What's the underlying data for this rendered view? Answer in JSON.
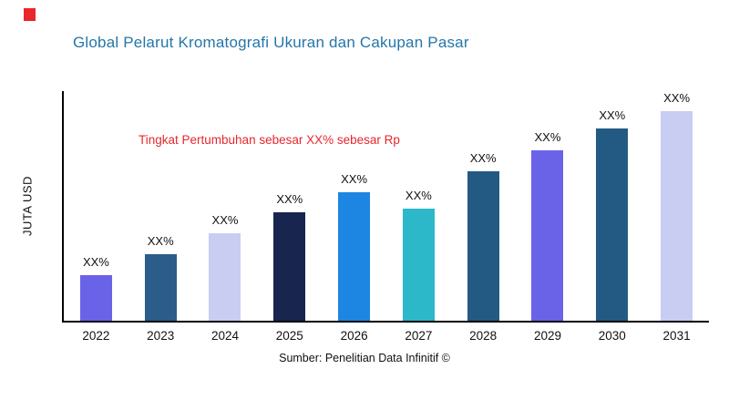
{
  "brand": {
    "logo_color": "#e8262c"
  },
  "title": "Global Pelarut Kromatografi Ukuran dan Cakupan Pasar",
  "title_color": "#2576a8",
  "annotation": {
    "text": "Tingkat Pertumbuhan sebesar XX% sebesar Rp",
    "color": "#e8262c"
  },
  "source": "Sumber: Penelitian Data Infinitif ©",
  "chart_data": {
    "type": "bar",
    "title": "Global Pelarut Kromatografi Ukuran dan Cakupan Pasar",
    "xlabel": "",
    "ylabel": "JUTA USD",
    "categories": [
      "2022",
      "2023",
      "2024",
      "2025",
      "2026",
      "2027",
      "2028",
      "2029",
      "2030",
      "2031"
    ],
    "values": [
      50,
      72,
      95,
      118,
      140,
      122,
      163,
      186,
      209,
      232
    ],
    "bar_labels": [
      "XX%",
      "XX%",
      "XX%",
      "XX%",
      "XX%",
      "XX%",
      "XX%",
      "XX%",
      "XX%",
      "XX%"
    ],
    "bar_colors": [
      "#6a63e8",
      "#2b5c8a",
      "#c9cdf2",
      "#18264f",
      "#1d86e3",
      "#2cb8c9",
      "#235a84",
      "#6a63e8",
      "#235a84",
      "#c9cdf2"
    ],
    "ylim": [
      0,
      250
    ],
    "grid": false,
    "legend": false,
    "annotation": "Tingkat Pertumbuhan sebesar XX% sebesar Rp",
    "source": "Sumber: Penelitian Data Infinitif ©"
  }
}
